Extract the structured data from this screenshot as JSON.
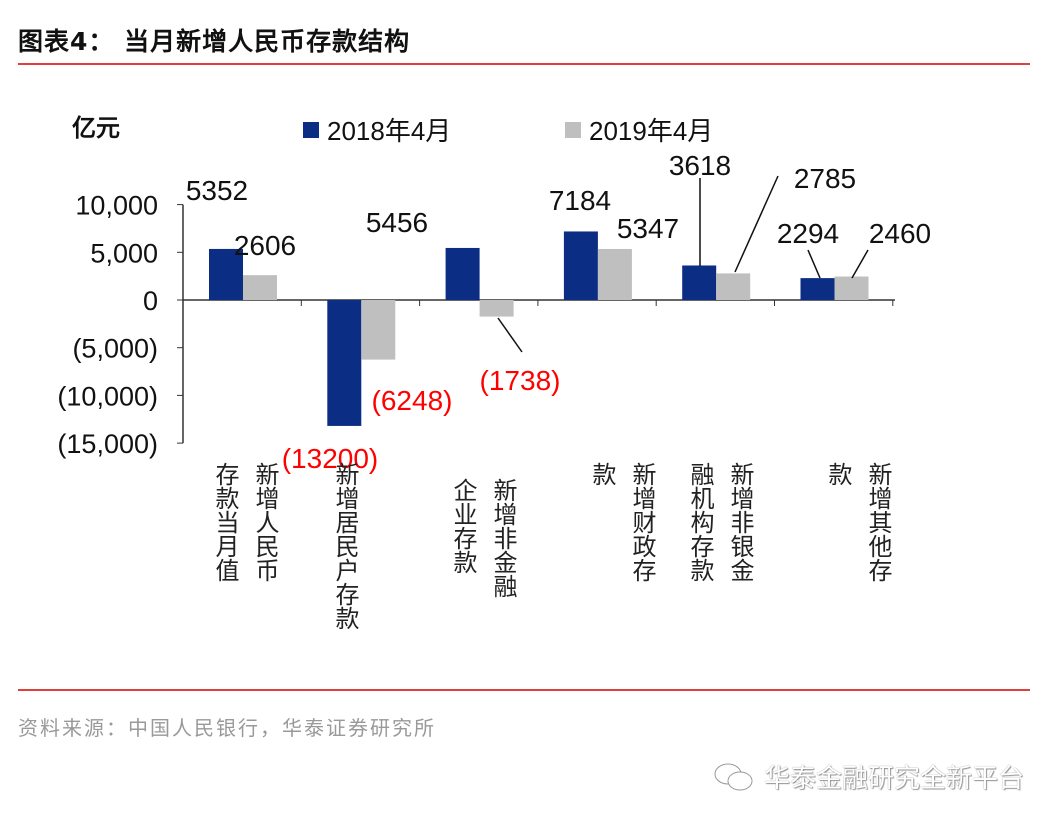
{
  "header": {
    "title": "图表4： 当月新增人民币存款结构"
  },
  "footer": {
    "source": "资料来源：中国人民银行，华泰证券研究所",
    "watermark": "华泰金融研究全新平台",
    "watermark_icon": "wechat-icon"
  },
  "chart_data": {
    "type": "bar",
    "title": "",
    "ylabel": "亿元",
    "ylim": [
      -15000,
      10000
    ],
    "yticks": [
      10000,
      5000,
      0,
      -5000,
      -10000,
      -15000
    ],
    "ytick_labels": [
      "10,000",
      "5,000",
      "0",
      "(5,000)",
      "(10,000)",
      "(15,000)"
    ],
    "legend_position": "top",
    "categories": [
      "新增人民币存款当月值",
      "新增居民户存款",
      "新增非金融企业存款",
      "新增财政存款",
      "新增非银金融机构存款",
      "新增其他存款"
    ],
    "series": [
      {
        "name": "2018年4月",
        "color": "#0b2d84",
        "values": [
          5352,
          -13200,
          5456,
          7184,
          3618,
          2294
        ],
        "labels": [
          "5352",
          "(13200)",
          "5456",
          "7184",
          "3618",
          "2294"
        ]
      },
      {
        "name": "2019年4月",
        "color": "#bfbfbf",
        "values": [
          2606,
          -6248,
          -1738,
          5347,
          2785,
          2460
        ],
        "labels": [
          "2606",
          "(6248)",
          "(1738)",
          "5347",
          "2785",
          "2460"
        ]
      }
    ],
    "negative_label_color": "#ff0000"
  }
}
